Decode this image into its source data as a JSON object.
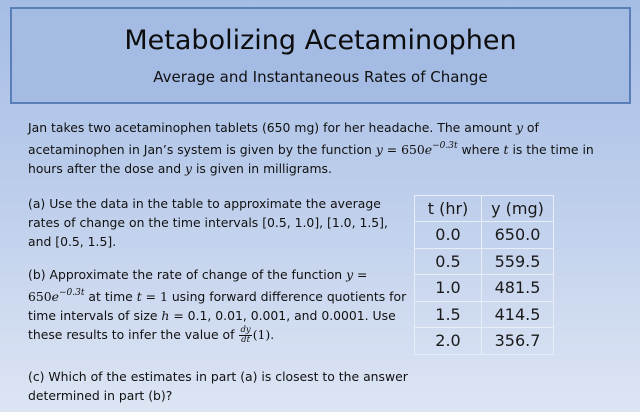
{
  "header": {
    "title": "Metabolizing Acetaminophen",
    "subtitle": "Average and Instantaneous Rates of Change"
  },
  "intro": {
    "text_1": "Jan takes two acetaminophen tablets (650 mg) for her headache. The amount ",
    "var_y": "y",
    "text_2": " of acetaminophen in Jan’s system is given by the function ",
    "func_lhs": "y",
    "func_eq": " = 650",
    "func_e": "e",
    "func_exp": "−0.3t",
    "text_3": " where ",
    "var_t": "t",
    "text_4": " is the time in hours after the dose and ",
    "var_y2": "y",
    "text_5": " is given in milligrams."
  },
  "part_a": {
    "text": "(a) Use the data in the table to approximate the average rates of change on the time intervals [0.5, 1.0], [1.0, 1.5], and [0.5, 1.5]."
  },
  "part_b": {
    "text_1": "(b) Approximate the rate of change of the function ",
    "func_lhs": "y",
    "func_eq": " = 650",
    "func_e": "e",
    "func_exp": "−0.3t",
    "text_2": " at time ",
    "var_t": "t",
    "t_eq": " = 1",
    "text_3": " using forward difference quotients for time intervals of size ",
    "var_h": "h",
    "h_eq": " = ",
    "text_4": "0.1, 0.01, 0.001, and 0.0001. Use these results to infer the value of ",
    "frac_num": "dy",
    "frac_den": "dt",
    "text_5": "(1)."
  },
  "part_c": {
    "text": "(c) Which of the estimates in part (a) is closest to the answer determined in part (b)?"
  },
  "table": {
    "headers": [
      "t (hr)",
      "y (mg)"
    ],
    "rows": [
      [
        "0.0",
        "650.0"
      ],
      [
        "0.5",
        "559.5"
      ],
      [
        "1.0",
        "481.5"
      ],
      [
        "1.5",
        "414.5"
      ],
      [
        "2.0",
        "356.7"
      ]
    ]
  },
  "colors": {
    "background_top": "#a5bde5",
    "background_bottom": "#dde5f4",
    "title_box_fill": "#a4bbe4",
    "title_box_border": "#5a7eb7",
    "table_grid": "#e8eef8"
  }
}
